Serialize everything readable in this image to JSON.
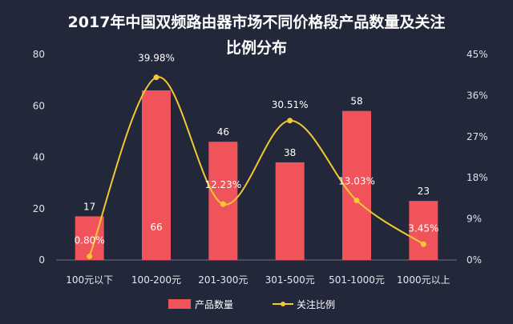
{
  "chart_data": {
    "type": "bar",
    "title_line1": "2017年中国双频路由器市场不同价格段产品数量及关注",
    "title_line2": "比例分布",
    "categories": [
      "100元以下",
      "100-200元",
      "201-300元",
      "301-500元",
      "501-1000元",
      "1000元以上"
    ],
    "series": [
      {
        "name": "产品数量",
        "type": "bar",
        "axis": "left",
        "color": "#f0545a",
        "values": [
          17,
          66,
          46,
          38,
          58,
          23
        ],
        "labels": [
          "17",
          "66",
          "46",
          "38",
          "58",
          "23"
        ]
      },
      {
        "name": "关注比例",
        "type": "line",
        "axis": "right",
        "color": "#f2c833",
        "values": [
          0.8,
          39.98,
          12.23,
          30.51,
          13.03,
          3.45
        ],
        "labels": [
          "0.80%",
          "39.98%",
          "12.23%",
          "30.51%",
          "13.03%",
          "3.45%"
        ]
      }
    ],
    "y_left": {
      "min": 0,
      "max": 80,
      "ticks": [
        "0",
        "20",
        "40",
        "60",
        "80"
      ]
    },
    "y_right": {
      "min": 0,
      "max": 45,
      "ticks": [
        "0%",
        "9%",
        "18%",
        "27%",
        "36%",
        "45%"
      ]
    },
    "legend_position": "bottom"
  }
}
